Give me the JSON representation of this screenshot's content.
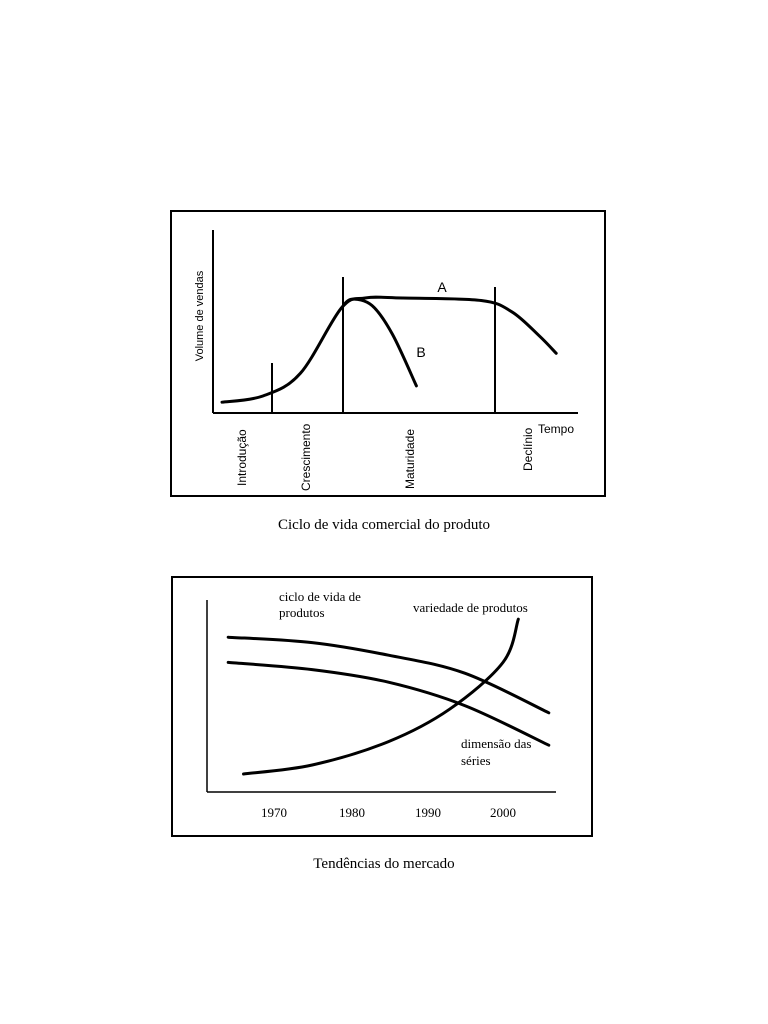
{
  "chart_data": [
    {
      "type": "line",
      "title": "",
      "caption": "Ciclo de vida comercial do produto",
      "xlabel": "Tempo",
      "ylabel": "Volume de vendas",
      "stages": [
        "Introdução",
        "Crescimento",
        "Maturidade",
        "Declínio"
      ],
      "series": [
        {
          "name": "A",
          "points": [
            [
              0,
              0.03
            ],
            [
              0.12,
              0.08
            ],
            [
              0.23,
              0.26
            ],
            [
              0.35,
              0.78
            ],
            [
              0.42,
              0.86
            ],
            [
              0.53,
              0.86
            ],
            [
              0.76,
              0.84
            ],
            [
              0.85,
              0.75
            ],
            [
              0.93,
              0.56
            ],
            [
              0.98,
              0.42
            ]
          ]
        },
        {
          "name": "B",
          "points": [
            [
              0.35,
              0.78
            ],
            [
              0.38,
              0.85
            ],
            [
              0.44,
              0.8
            ],
            [
              0.5,
              0.57
            ],
            [
              0.57,
              0.16
            ]
          ]
        }
      ],
      "axes_scale": "qualitative (no numeric ticks)"
    },
    {
      "type": "line",
      "title": "",
      "caption": "Tendências do mercado",
      "xlabel": "",
      "ylabel": "",
      "categories": [
        "1970",
        "1980",
        "1990",
        "2000"
      ],
      "series": [
        {
          "name": "ciclo de vida de produtos",
          "points": [
            [
              1964,
              0.86
            ],
            [
              1975,
              0.83
            ],
            [
              1985,
              0.76
            ],
            [
              1995,
              0.66
            ],
            [
              2006,
              0.44
            ]
          ]
        },
        {
          "name": "variedade de produtos",
          "points": [
            [
              1966,
              0.1
            ],
            [
              1975,
              0.15
            ],
            [
              1985,
              0.28
            ],
            [
              1993,
              0.46
            ],
            [
              2000,
              0.72
            ],
            [
              2002,
              0.96
            ]
          ]
        },
        {
          "name": "dimensão das séries",
          "points": [
            [
              1964,
              0.72
            ],
            [
              1975,
              0.68
            ],
            [
              1985,
              0.61
            ],
            [
              1995,
              0.48
            ],
            [
              2006,
              0.26
            ]
          ]
        }
      ],
      "series_labels": [
        "ciclo de vida de",
        "produtos",
        "variedade de produtos",
        "dimensão das",
        "séries"
      ],
      "axes_scale": "qualitative y-axis"
    }
  ]
}
